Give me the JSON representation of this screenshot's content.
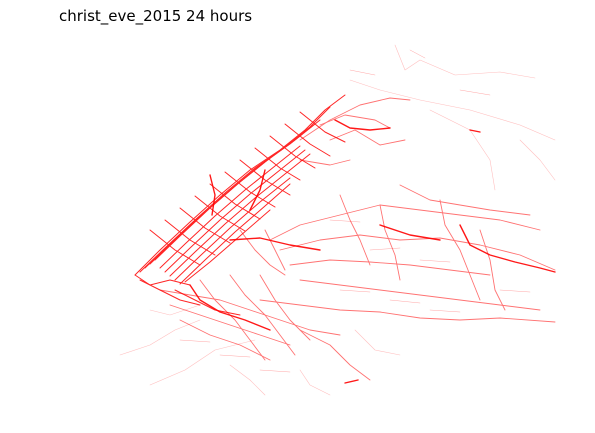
{
  "title": "christ_eve_2015 24 hours",
  "map": {
    "line_color": "#ff0000",
    "background": "#ffffff",
    "axes_visible": false
  }
}
